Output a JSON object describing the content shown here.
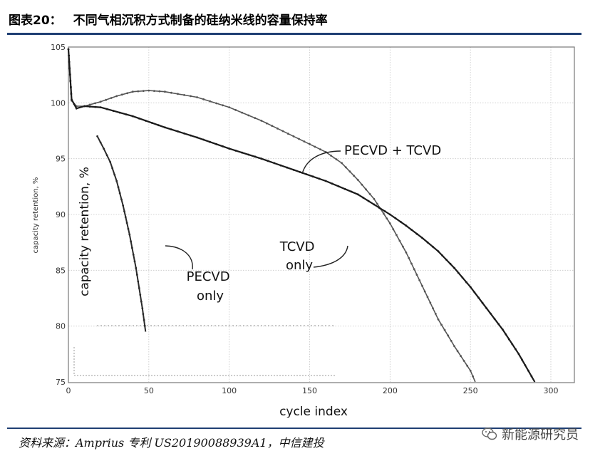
{
  "figure": {
    "number": "图表20：",
    "title": "不同气相沉积方式制备的硅纳米线的容量保持率"
  },
  "source": "资料来源：Amprius 专利 US20190088939A1，中信建投",
  "watermark": "新能源研究员",
  "colors": {
    "rule": "#1f3f73",
    "line_dark": "#1a1a1a",
    "line_light": "#555555"
  },
  "chart_data": {
    "type": "line",
    "xlabel": "cycle index",
    "ylabel": "capacity retention, %",
    "xlim": [
      0,
      310
    ],
    "ylim": [
      75,
      100
    ],
    "x_ticks": [
      "0",
      "50",
      "100",
      "150",
      "200",
      "250",
      "300"
    ],
    "y_ticks": [
      "75",
      "80",
      "85",
      "90",
      "95",
      "100",
      "105"
    ],
    "grid": true,
    "series": [
      {
        "name": "PECVD + TCVD",
        "x": [
          0,
          2,
          5,
          10,
          20,
          30,
          40,
          50,
          60,
          80,
          100,
          120,
          140,
          160,
          170,
          180,
          190,
          200,
          210,
          220,
          230,
          240,
          250,
          253
        ],
        "y": [
          104.8,
          100.2,
          99.7,
          99.7,
          100.1,
          100.6,
          101.0,
          101.1,
          101.0,
          100.5,
          99.6,
          98.4,
          97.0,
          95.6,
          94.6,
          93.1,
          91.4,
          89.2,
          86.6,
          83.6,
          80.6,
          78.2,
          76.0,
          75.0
        ]
      },
      {
        "name": "TCVD only",
        "x": [
          0,
          2,
          5,
          10,
          20,
          40,
          60,
          80,
          100,
          120,
          140,
          160,
          180,
          200,
          210,
          220,
          230,
          240,
          250,
          260,
          270,
          280,
          290
        ],
        "y": [
          104.8,
          100.3,
          99.5,
          99.7,
          99.6,
          98.8,
          97.8,
          96.9,
          95.9,
          95.0,
          94.0,
          93.0,
          91.8,
          90.0,
          89.0,
          87.9,
          86.7,
          85.2,
          83.5,
          81.6,
          79.7,
          77.5,
          75.0
        ]
      },
      {
        "name": "PECVD only",
        "x": [
          18,
          22,
          26,
          30,
          34,
          38,
          42,
          46,
          48
        ],
        "y": [
          97.0,
          95.9,
          94.7,
          93.0,
          90.8,
          88.2,
          85.2,
          81.6,
          79.5
        ]
      }
    ],
    "annotations": [
      {
        "text_lines": [
          "PECVD + TCVD"
        ]
      },
      {
        "text_lines": [
          "TCVD",
          "only"
        ]
      },
      {
        "text_lines": [
          "PECVD",
          "only"
        ]
      }
    ]
  }
}
